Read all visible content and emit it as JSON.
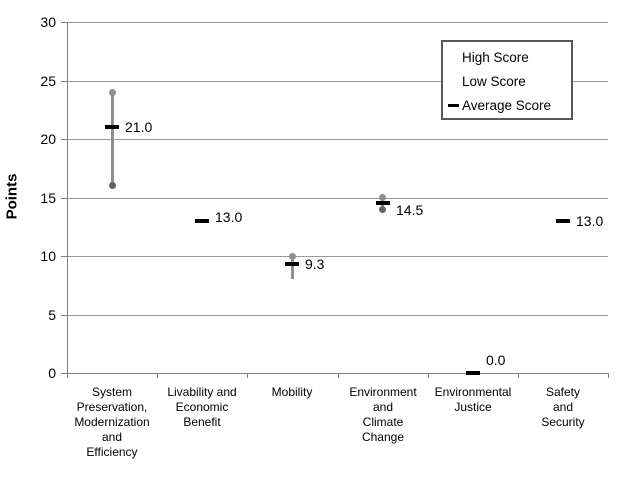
{
  "y_axis": {
    "title": "Points",
    "tick_labels": [
      "0",
      "5",
      "10",
      "15",
      "20",
      "25",
      "30"
    ]
  },
  "legend": {
    "entries": [
      {
        "label": "High Score",
        "marker": "none"
      },
      {
        "label": "Low Score",
        "marker": "none"
      },
      {
        "label": "Average Score",
        "marker": "dash"
      }
    ]
  },
  "colors": {
    "high_dot": "#8f8f8f",
    "low_dot": "#636363",
    "range_line": "#8f8f8f",
    "average_dash": "#000000",
    "gridline": "#9b9b9b",
    "axis": "#808080",
    "text": "#000000",
    "legend_border": "#595959",
    "background": "#ffffff"
  },
  "chart_data": {
    "type": "scatter",
    "subtype": "high-low-average-range",
    "title": "",
    "xlabel": "",
    "ylabel": "Points",
    "ylim": [
      0,
      30
    ],
    "y_ticks": [
      0,
      5,
      10,
      15,
      20,
      25,
      30
    ],
    "grid": "horizontal",
    "legend_position": "top-right-inside",
    "categories": [
      "System Preservation, Modernization and Efficiency",
      "Livability and Economic Benefit",
      "Mobility",
      "Environment and Climate Change",
      "Environmental Justice",
      "Safety and Security"
    ],
    "category_label_lines": [
      [
        "System",
        "Preservation,",
        "Modernization",
        "and",
        "Efficiency"
      ],
      [
        "Livability and",
        "Economic",
        "Benefit"
      ],
      [
        "Mobility"
      ],
      [
        "Environment",
        "and",
        "Climate",
        "Change"
      ],
      [
        "Environmental",
        "Justice"
      ],
      [
        "Safety",
        "and",
        "Security"
      ]
    ],
    "series": [
      {
        "name": "High Score",
        "values": [
          24,
          null,
          10,
          15,
          null,
          null
        ]
      },
      {
        "name": "Low Score",
        "values": [
          16,
          null,
          8,
          14,
          null,
          null
        ]
      },
      {
        "name": "Average Score",
        "values": [
          21.0,
          13.0,
          9.3,
          14.5,
          0.0,
          13.0
        ]
      }
    ],
    "points": [
      {
        "high": 24,
        "low": 16,
        "avg": 21.0,
        "label": "21.0",
        "show_high_dot": true,
        "show_low_dot": true,
        "show_range": true,
        "label_dy": 0
      },
      {
        "high": null,
        "low": null,
        "avg": 13.0,
        "label": "13.0",
        "show_high_dot": false,
        "show_low_dot": false,
        "show_range": false,
        "label_dy": -4
      },
      {
        "high": 10,
        "low": 8,
        "avg": 9.3,
        "label": "9.3",
        "show_high_dot": true,
        "show_low_dot": false,
        "show_range": true,
        "label_dy": 0
      },
      {
        "high": 15,
        "low": 14,
        "avg": 14.5,
        "label": "14.5",
        "show_high_dot": true,
        "show_low_dot": true,
        "show_range": true,
        "label_dy": 7
      },
      {
        "high": null,
        "low": null,
        "avg": 0.0,
        "label": "0.0",
        "show_high_dot": false,
        "show_low_dot": false,
        "show_range": false,
        "label_dy": -13
      },
      {
        "high": null,
        "low": null,
        "avg": 13.0,
        "label": "13.0",
        "show_high_dot": false,
        "show_low_dot": false,
        "show_range": false,
        "label_dy": 0
      }
    ]
  }
}
